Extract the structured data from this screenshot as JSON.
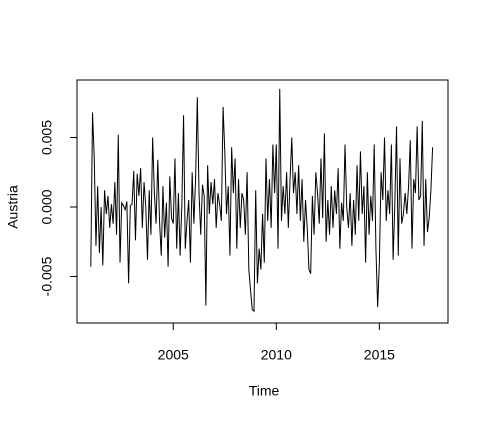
{
  "chart_data": {
    "type": "line",
    "xlabel": "Time",
    "ylabel": "Austria",
    "color": "#000000",
    "xlim": [
      2000.33,
      2018.33
    ],
    "xticks": [
      2005,
      2010,
      2015
    ],
    "ylim": [
      -0.00835,
      0.00914
    ],
    "yticks": [
      -0.005,
      {
        "value": 0,
        "label": "0.000"
      },
      0.005
    ],
    "x": [
      2001,
      2001.083,
      2001.167,
      2001.25,
      2001.333,
      2001.417,
      2001.5,
      2001.583,
      2001.667,
      2001.75,
      2001.833,
      2001.917,
      2002,
      2002.083,
      2002.167,
      2002.25,
      2002.333,
      2002.417,
      2002.5,
      2002.583,
      2002.667,
      2002.75,
      2002.833,
      2002.917,
      2003,
      2003.083,
      2003.167,
      2003.25,
      2003.333,
      2003.417,
      2003.5,
      2003.583,
      2003.667,
      2003.75,
      2003.833,
      2003.917,
      2004,
      2004.083,
      2004.167,
      2004.25,
      2004.333,
      2004.417,
      2004.5,
      2004.583,
      2004.667,
      2004.75,
      2004.833,
      2004.917,
      2005,
      2005.083,
      2005.167,
      2005.25,
      2005.333,
      2005.417,
      2005.5,
      2005.583,
      2005.667,
      2005.75,
      2005.833,
      2005.917,
      2006,
      2006.083,
      2006.167,
      2006.25,
      2006.333,
      2006.417,
      2006.5,
      2006.583,
      2006.667,
      2006.75,
      2006.833,
      2006.917,
      2007,
      2007.083,
      2007.167,
      2007.25,
      2007.333,
      2007.417,
      2007.5,
      2007.583,
      2007.667,
      2007.75,
      2007.833,
      2007.917,
      2008,
      2008.083,
      2008.167,
      2008.25,
      2008.333,
      2008.417,
      2008.5,
      2008.583,
      2008.667,
      2008.75,
      2008.833,
      2008.917,
      2009,
      2009.083,
      2009.167,
      2009.25,
      2009.333,
      2009.417,
      2009.5,
      2009.583,
      2009.667,
      2009.75,
      2009.833,
      2009.917,
      2010,
      2010.083,
      2010.167,
      2010.25,
      2010.333,
      2010.417,
      2010.5,
      2010.583,
      2010.667,
      2010.75,
      2010.833,
      2010.917,
      2011,
      2011.083,
      2011.167,
      2011.25,
      2011.333,
      2011.417,
      2011.5,
      2011.583,
      2011.667,
      2011.75,
      2011.833,
      2011.917,
      2012,
      2012.083,
      2012.167,
      2012.25,
      2012.333,
      2012.417,
      2012.5,
      2012.583,
      2012.667,
      2012.75,
      2012.833,
      2012.917,
      2013,
      2013.083,
      2013.167,
      2013.25,
      2013.333,
      2013.417,
      2013.5,
      2013.583,
      2013.667,
      2013.75,
      2013.833,
      2013.917,
      2014,
      2014.083,
      2014.167,
      2014.25,
      2014.333,
      2014.417,
      2014.5,
      2014.583,
      2014.667,
      2014.75,
      2014.833,
      2014.917,
      2015,
      2015.083,
      2015.167,
      2015.25,
      2015.333,
      2015.417,
      2015.5,
      2015.583,
      2015.667,
      2015.75,
      2015.833,
      2015.917,
      2016,
      2016.083,
      2016.167,
      2016.25,
      2016.333,
      2016.417,
      2016.5,
      2016.583,
      2016.667,
      2016.75,
      2016.833,
      2016.917,
      2017,
      2017.083,
      2017.167,
      2017.25,
      2017.333,
      2017.417,
      2017.5,
      2017.583
    ],
    "values": [
      -0.0043,
      0.0068,
      0.0035,
      -0.0028,
      0.0015,
      -0.0033,
      0.0,
      -0.0042,
      0.0012,
      -0.0005,
      0.0008,
      -0.0015,
      0.0002,
      -0.0012,
      0.0018,
      -0.002,
      0.0052,
      -0.004,
      0.0003,
      0.0001,
      -0.0002,
      0.0004,
      -0.0055,
      0.0001,
      0.0002,
      0.0026,
      -0.0024,
      0.0024,
      0.0008,
      0.0028,
      -0.0015,
      0.0018,
      0.0,
      -0.0038,
      0.0012,
      -0.002,
      0.005,
      0.001,
      -0.0012,
      0.0034,
      -0.001,
      -0.0035,
      0.0015,
      -0.0022,
      0.0003,
      -0.0043,
      0.0022,
      -0.0008,
      -0.0012,
      0.0035,
      -0.003,
      0.001,
      -0.0035,
      0.0002,
      0.0066,
      -0.003,
      -0.001,
      0.0005,
      -0.004,
      0.0025,
      -0.0012,
      0.002,
      0.0079,
      0.001,
      -0.002,
      0.0016,
      0.0008,
      -0.0071,
      0.003,
      -0.0005,
      0.0018,
      0.0002,
      0.002,
      -0.0015,
      0.001,
      0.0002,
      -0.001,
      0.0072,
      0.004,
      -0.0005,
      0.0015,
      -0.0035,
      0.0043,
      0.001,
      0.0035,
      -0.003,
      0.002,
      -0.0015,
      0.001,
      0.0005,
      -0.002,
      0.0025,
      -0.0045,
      -0.006,
      -0.0074,
      -0.0075,
      0.0012,
      -0.0055,
      -0.003,
      -0.0045,
      -0.0005,
      -0.004,
      0.0035,
      -0.001,
      0.002,
      -0.0015,
      0.0045,
      0.001,
      0.0045,
      -0.003,
      0.0085,
      -0.001,
      0.0015,
      -0.0005,
      0.0025,
      -0.0015,
      0.002,
      0.005,
      0.001,
      0.0025,
      -0.0005,
      0.003,
      -0.001,
      0.002,
      -0.0025,
      0.0005,
      -0.0015,
      -0.0045,
      -0.0048,
      0.0008,
      -0.002,
      0.0025,
      0.001,
      -0.0012,
      0.0035,
      -0.0008,
      0.0053,
      -0.0025,
      0.0005,
      -0.002,
      0.0015,
      -0.0015,
      0.0012,
      -0.0005,
      0.0028,
      -0.003,
      0.0003,
      -0.001,
      0.0045,
      0.0,
      -0.0015,
      0.001,
      -0.0028,
      0.0005,
      -0.002,
      0.003,
      -0.001,
      0.004,
      -0.0005,
      0.0015,
      -0.004,
      0.0025,
      -0.002,
      0.0008,
      -0.001,
      0.0045,
      -0.003,
      -0.0072,
      -0.004,
      0.0025,
      0.0005,
      0.005,
      -0.001,
      0.0012,
      -0.0005,
      0.0045,
      -0.0038,
      0.0002,
      0.0058,
      -0.0035,
      0.0035,
      -0.0012,
      -0.0005,
      0.001,
      -0.0005,
      0.0015,
      0.0048,
      -0.003,
      0.002,
      0.001,
      0.0058,
      0.0005,
      0.0008,
      0.0062,
      -0.0028,
      0.002,
      -0.0018,
      -0.0008,
      0.0012,
      0.0043
    ]
  }
}
